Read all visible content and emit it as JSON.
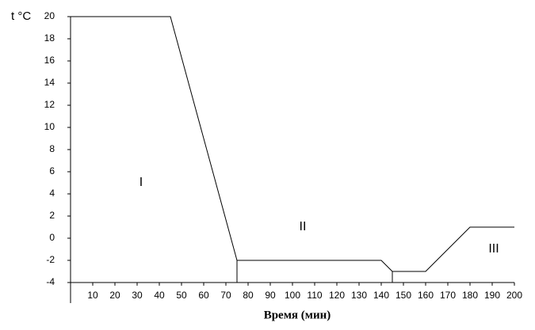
{
  "chart_data": {
    "type": "line",
    "x_label": "Время (мин)",
    "y_label": "t °C",
    "series": [
      {
        "x": [
          0,
          45,
          75,
          140,
          145,
          160,
          180,
          200
        ],
        "values": [
          20,
          20,
          -2,
          -2,
          -3,
          -3,
          1,
          1
        ],
        "color": "#000000"
      }
    ],
    "dividers": [
      75,
      145
    ],
    "annotations": [
      "I",
      "II",
      "III"
    ],
    "xlim": [
      0,
      200
    ],
    "xticks": [
      10,
      20,
      30,
      40,
      50,
      60,
      70,
      80,
      90,
      100,
      110,
      120,
      130,
      140,
      150,
      160,
      170,
      180,
      190,
      200
    ],
    "ylim": [
      -4,
      20
    ],
    "yticks": [
      -4,
      -2,
      0,
      2,
      4,
      6,
      8,
      10,
      12,
      14,
      16,
      18,
      20
    ],
    "grid": false
  }
}
